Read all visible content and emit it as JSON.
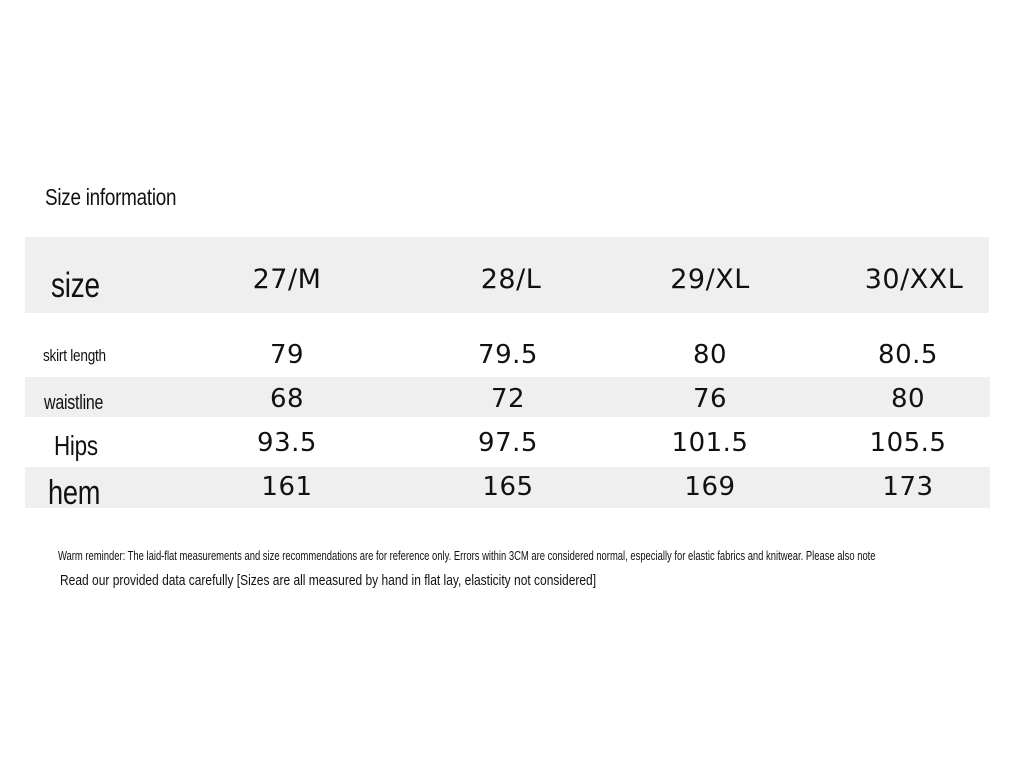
{
  "title": "Size information",
  "table": {
    "header": {
      "label": "size",
      "sizes": [
        "27/M",
        "28/L",
        "29/XL",
        "30/XXL"
      ]
    },
    "rows": [
      {
        "label": "skirt length",
        "values": [
          "79",
          "79.5",
          "80",
          "80.5"
        ]
      },
      {
        "label": "waistline",
        "values": [
          "68",
          "72",
          "76",
          "80"
        ]
      },
      {
        "label": "Hips",
        "values": [
          "93.5",
          "97.5",
          "101.5",
          "105.5"
        ]
      },
      {
        "label": "hem",
        "values": [
          "161",
          "165",
          "169",
          "173"
        ]
      }
    ]
  },
  "notes": {
    "reminder": "Warm reminder: The laid-flat measurements and size recommendations are for reference only. Errors within 3CM are considered normal, especially for elastic fabrics and knitwear. Please also note",
    "careful": "Read our provided data carefully [Sizes are all measured by hand in flat lay, elasticity not considered]"
  },
  "colors": {
    "band": "#efefef",
    "text": "#111111",
    "background": "#ffffff"
  }
}
